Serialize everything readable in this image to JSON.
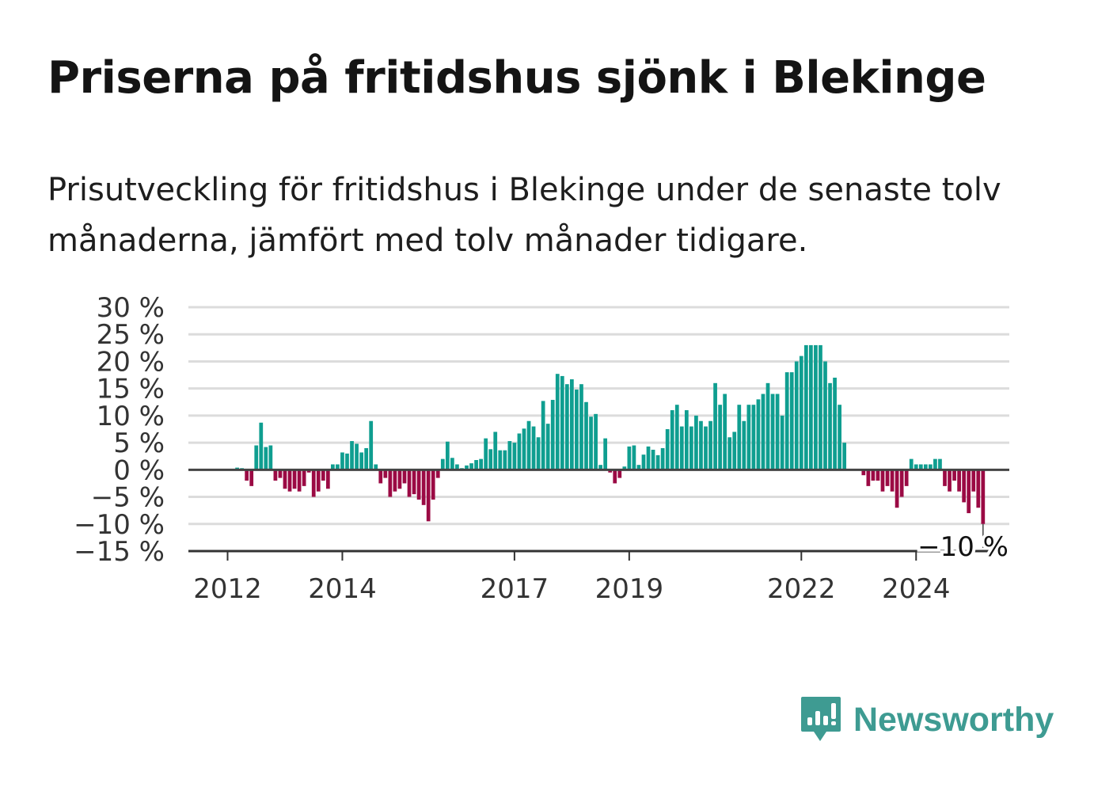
{
  "title": "Priserna på fritidshus sjönk i Blekinge",
  "subtitle": "Prisutveckling för fritidshus i Blekinge under de senaste tolv månaderna, jämfört med tolv månader tidigare.",
  "brand": {
    "name": "Newsworthy",
    "icon": "newsworthy-logo-icon",
    "color": "#3e9b92"
  },
  "chart_data": {
    "type": "bar",
    "title": "",
    "xlabel": "",
    "ylabel": "",
    "ylim": [
      -15,
      30
    ],
    "grid": true,
    "yticks": [
      30,
      25,
      20,
      15,
      10,
      5,
      0,
      -5,
      -10,
      -15
    ],
    "ytick_labels": [
      "30 %",
      "25 %",
      "20 %",
      "15 %",
      "10 %",
      "5 %",
      "0 %",
      "−5 %",
      "−10 %",
      "−15 %"
    ],
    "xtick_labels": [
      "2012",
      "2014",
      "2017",
      "2019",
      "2022",
      "2024"
    ],
    "start": "2011-08",
    "positive_color": "#0f9e90",
    "negative_color": "#9b0a44",
    "annotation": "−10 %",
    "values": [
      0,
      0,
      0,
      0,
      0,
      0,
      0,
      0.4,
      0.3,
      -2,
      -3,
      4.5,
      8.7,
      4.2,
      4.5,
      -2,
      -1.5,
      -3.5,
      -4,
      -3.5,
      -4,
      -3,
      -0.5,
      -5,
      -4,
      -2,
      -3.5,
      1,
      1,
      3.2,
      3,
      5.3,
      4.8,
      3.2,
      4,
      9,
      1,
      -2.5,
      -1.5,
      -5,
      -4,
      -3.5,
      -2.5,
      -5,
      -4.5,
      -5.5,
      -6.5,
      -9.5,
      -5.5,
      -1.5,
      2,
      5.2,
      2.2,
      1,
      0.3,
      0.8,
      1.2,
      1.8,
      2,
      5.8,
      3.8,
      7,
      3.6,
      3.6,
      5.3,
      5,
      6.7,
      7.6,
      9,
      8,
      6,
      12.7,
      8.5,
      12.9,
      17.7,
      17.3,
      15.8,
      16.7,
      14.8,
      15.8,
      12.5,
      9.8,
      10.3,
      0.9,
      5.8,
      -0.5,
      -2.5,
      -1.5,
      0.6,
      4.3,
      4.5,
      0.9,
      2.8,
      4.3,
      3.7,
      2.7,
      4,
      7.5,
      11,
      12,
      8,
      11,
      8,
      10,
      9,
      8,
      9,
      16,
      12,
      14,
      6,
      7,
      12,
      9,
      12,
      12,
      13,
      14,
      16,
      14,
      14,
      10,
      18,
      18,
      20,
      21,
      23,
      23,
      23,
      23,
      20,
      16,
      17,
      12,
      5,
      0,
      0,
      0,
      -1,
      -3,
      -2,
      -2,
      -4,
      -3,
      -4,
      -7,
      -5,
      -3,
      2,
      1,
      1,
      1,
      1,
      2,
      2,
      -3,
      -4,
      -2,
      -4,
      -6,
      -8,
      -4,
      -7,
      -10
    ]
  }
}
